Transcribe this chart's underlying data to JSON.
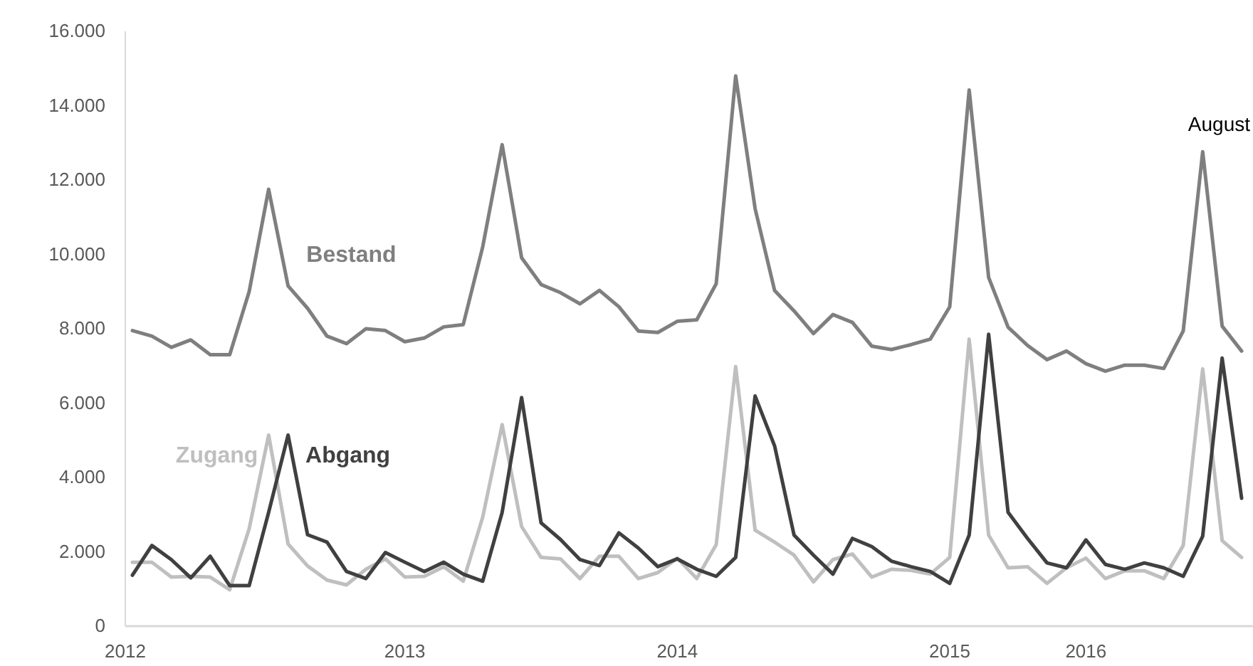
{
  "chart_data": {
    "type": "line",
    "categories": [
      "2012",
      null,
      null,
      null,
      null,
      null,
      null,
      null,
      null,
      null,
      null,
      null,
      null,
      null,
      "2013",
      null,
      null,
      null,
      null,
      null,
      null,
      null,
      null,
      null,
      null,
      null,
      null,
      null,
      "2014",
      null,
      null,
      null,
      null,
      null,
      null,
      null,
      null,
      null,
      null,
      null,
      null,
      null,
      "2015",
      null,
      null,
      null,
      null,
      null,
      null,
      "2016",
      null,
      null,
      null,
      null,
      null,
      null,
      null,
      null
    ],
    "series": [
      {
        "name": "Bestand",
        "color": "#7f7f7f",
        "values": [
          7950,
          7800,
          7500,
          7700,
          7300,
          7300,
          9000,
          11750,
          9150,
          8550,
          7800,
          7600,
          8000,
          7950,
          7650,
          7750,
          8050,
          8110,
          10200,
          12950,
          9910,
          9190,
          8970,
          8670,
          9030,
          8590,
          7940,
          7900,
          8200,
          8240,
          9210,
          14800,
          11230,
          9030,
          8480,
          7870,
          8380,
          8170,
          7530,
          7440,
          7570,
          7720,
          8590,
          14420,
          9380,
          8040,
          7550,
          7170,
          7400,
          7060,
          6860,
          7020,
          7020,
          6930,
          7940,
          12760,
          8070,
          7400
        ]
      },
      {
        "name": "Zugang",
        "color": "#bfbfbf",
        "values": [
          1720,
          1720,
          1320,
          1340,
          1320,
          980,
          2620,
          5140,
          2210,
          1620,
          1240,
          1110,
          1530,
          1810,
          1320,
          1340,
          1600,
          1210,
          2930,
          5420,
          2680,
          1850,
          1810,
          1280,
          1880,
          1880,
          1280,
          1440,
          1830,
          1280,
          2190,
          6980,
          2580,
          2260,
          1910,
          1190,
          1790,
          1940,
          1320,
          1530,
          1500,
          1400,
          1850,
          7720,
          2450,
          1570,
          1600,
          1150,
          1570,
          1830,
          1280,
          1490,
          1490,
          1280,
          2170,
          6920,
          2300,
          1850
        ]
      },
      {
        "name": "Abgang",
        "color": "#404040",
        "values": [
          1370,
          2170,
          1790,
          1300,
          1880,
          1090,
          1090,
          3060,
          5140,
          2460,
          2260,
          1470,
          1280,
          1980,
          1720,
          1470,
          1720,
          1400,
          1210,
          3060,
          6150,
          2780,
          2330,
          1790,
          1630,
          2510,
          2100,
          1600,
          1810,
          1530,
          1340,
          1850,
          6190,
          4850,
          2450,
          1910,
          1400,
          2360,
          2140,
          1750,
          1600,
          1470,
          1150,
          2450,
          7850,
          3060,
          2360,
          1700,
          1570,
          2320,
          1660,
          1530,
          1700,
          1570,
          1340,
          2420,
          7210,
          3440
        ]
      }
    ],
    "ylim": [
      0,
      16000
    ],
    "yticks": [
      0,
      {
        "value": 2000,
        "label": "2.000"
      },
      {
        "value": 4000,
        "label": "4.000"
      },
      {
        "value": 6000,
        "label": "6.000"
      },
      {
        "value": 8000,
        "label": "8.000"
      },
      {
        "value": 10000,
        "label": "10.000"
      },
      {
        "value": 12000,
        "label": "12.000"
      },
      {
        "value": 14000,
        "label": "14.000"
      },
      {
        "value": 16000,
        "label": "16.000"
      }
    ],
    "annotations": [
      "August"
    ],
    "legend": false
  }
}
